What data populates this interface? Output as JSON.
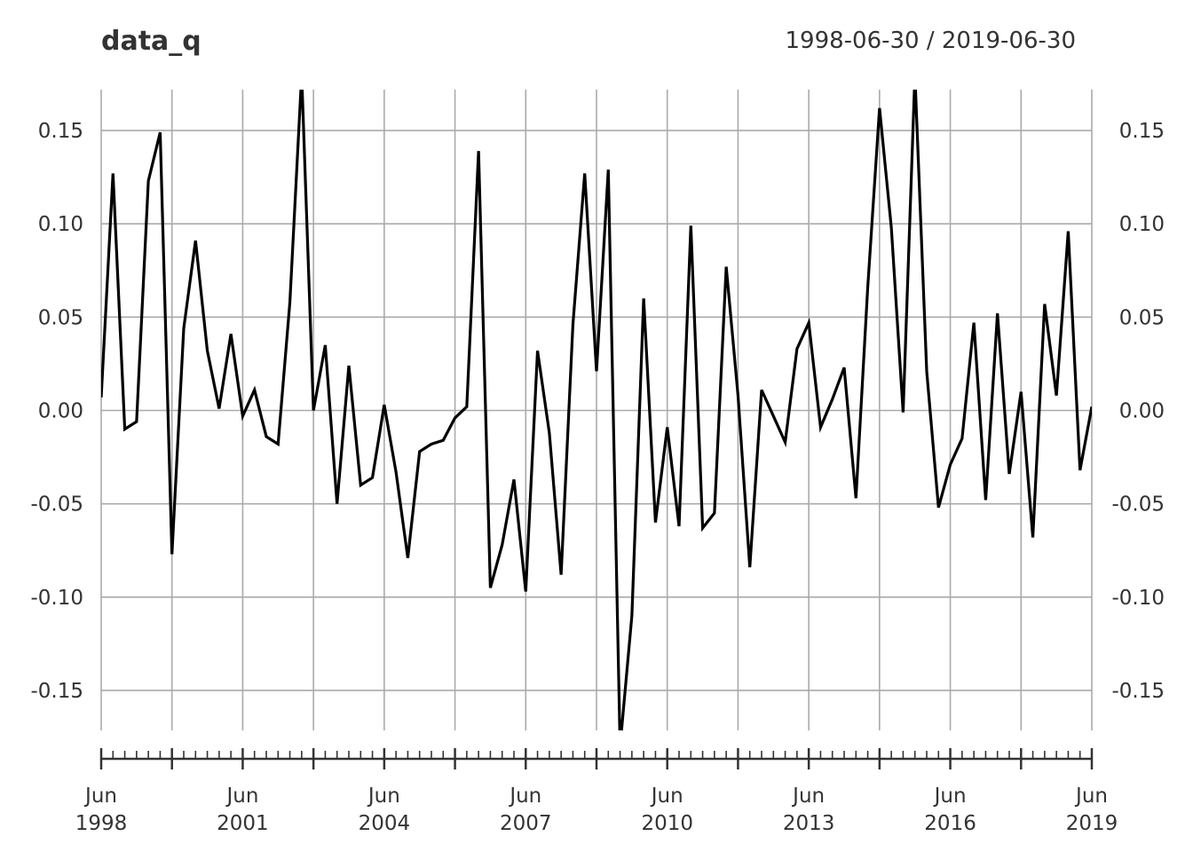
{
  "chart_data": {
    "type": "line",
    "title": "data_q",
    "date_range": "1998-06-30 / 2019-06-30",
    "ylim": [
      -0.17,
      0.17
    ],
    "y_ticks": [
      "0.15",
      "0.10",
      "0.05",
      "0.00",
      "-0.05",
      "-0.10",
      "-0.15"
    ],
    "x_tick_labels": [
      {
        "month": "Jun",
        "year": "1998"
      },
      {
        "month": "Jun",
        "year": "2001"
      },
      {
        "month": "Jun",
        "year": "2004"
      },
      {
        "month": "Jun",
        "year": "2007"
      },
      {
        "month": "Jun",
        "year": "2010"
      },
      {
        "month": "Jun",
        "year": "2013"
      },
      {
        "month": "Jun",
        "year": "2016"
      },
      {
        "month": "Jun",
        "year": "2019"
      }
    ],
    "grid": true,
    "frequency": "quarterly",
    "series": [
      {
        "color": "#000000",
        "x": [
          "1998-06-30",
          "1998-09-30",
          "1998-12-31",
          "1999-03-31",
          "1999-06-30",
          "1999-09-30",
          "1999-12-31",
          "2000-03-31",
          "2000-06-30",
          "2000-09-30",
          "2000-12-31",
          "2001-03-31",
          "2001-06-30",
          "2001-09-30",
          "2001-12-31",
          "2002-03-31",
          "2002-06-30",
          "2002-09-30",
          "2002-12-31",
          "2003-03-31",
          "2003-06-30",
          "2003-09-30",
          "2003-12-31",
          "2004-03-31",
          "2004-06-30",
          "2004-09-30",
          "2004-12-31",
          "2005-03-31",
          "2005-06-30",
          "2005-09-30",
          "2005-12-31",
          "2006-03-31",
          "2006-06-30",
          "2006-09-30",
          "2006-12-31",
          "2007-03-31",
          "2007-06-30",
          "2007-09-30",
          "2007-12-31",
          "2008-03-31",
          "2008-06-30",
          "2008-09-30",
          "2008-12-31",
          "2009-03-31",
          "2009-06-30",
          "2009-09-30",
          "2009-12-31",
          "2010-03-31",
          "2010-06-30",
          "2010-09-30",
          "2010-12-31",
          "2011-03-31",
          "2011-06-30",
          "2011-09-30",
          "2011-12-31",
          "2012-03-31",
          "2012-06-30",
          "2012-09-30",
          "2012-12-31",
          "2013-03-31",
          "2013-06-30",
          "2013-09-30",
          "2013-12-31",
          "2014-03-31",
          "2014-06-30",
          "2014-09-30",
          "2014-12-31",
          "2015-03-31",
          "2015-06-30",
          "2015-09-30",
          "2015-12-31",
          "2016-03-31",
          "2016-06-30",
          "2016-09-30",
          "2016-12-31",
          "2017-03-31",
          "2017-06-30",
          "2017-09-30",
          "2017-12-31",
          "2018-03-31",
          "2018-06-30",
          "2018-09-30",
          "2018-12-31",
          "2019-03-31",
          "2019-06-30"
        ],
        "values": [
          0.007,
          0.127,
          -0.01,
          -0.006,
          0.123,
          0.149,
          -0.077,
          0.044,
          0.091,
          0.032,
          0.001,
          0.041,
          -0.003,
          0.011,
          -0.014,
          -0.018,
          0.058,
          0.18,
          0.0,
          0.035,
          -0.05,
          0.024,
          -0.04,
          -0.036,
          0.003,
          -0.033,
          -0.079,
          -0.022,
          -0.018,
          -0.016,
          -0.004,
          0.002,
          0.139,
          -0.095,
          -0.072,
          -0.037,
          -0.097,
          0.032,
          -0.012,
          -0.088,
          0.046,
          0.127,
          0.021,
          0.129,
          -0.18,
          -0.11,
          0.06,
          -0.06,
          -0.009,
          -0.062,
          0.099,
          -0.063,
          -0.055,
          0.077,
          0.008,
          -0.084,
          0.011,
          -0.003,
          -0.017,
          0.033,
          0.047,
          -0.009,
          0.006,
          0.023,
          -0.047,
          0.066,
          0.162,
          0.098,
          -0.001,
          0.18,
          0.021,
          -0.052,
          -0.029,
          -0.015,
          0.047,
          -0.048,
          0.052,
          -0.034,
          0.01,
          -0.068,
          0.057,
          0.008,
          0.096,
          -0.032,
          0.002
        ]
      }
    ]
  }
}
